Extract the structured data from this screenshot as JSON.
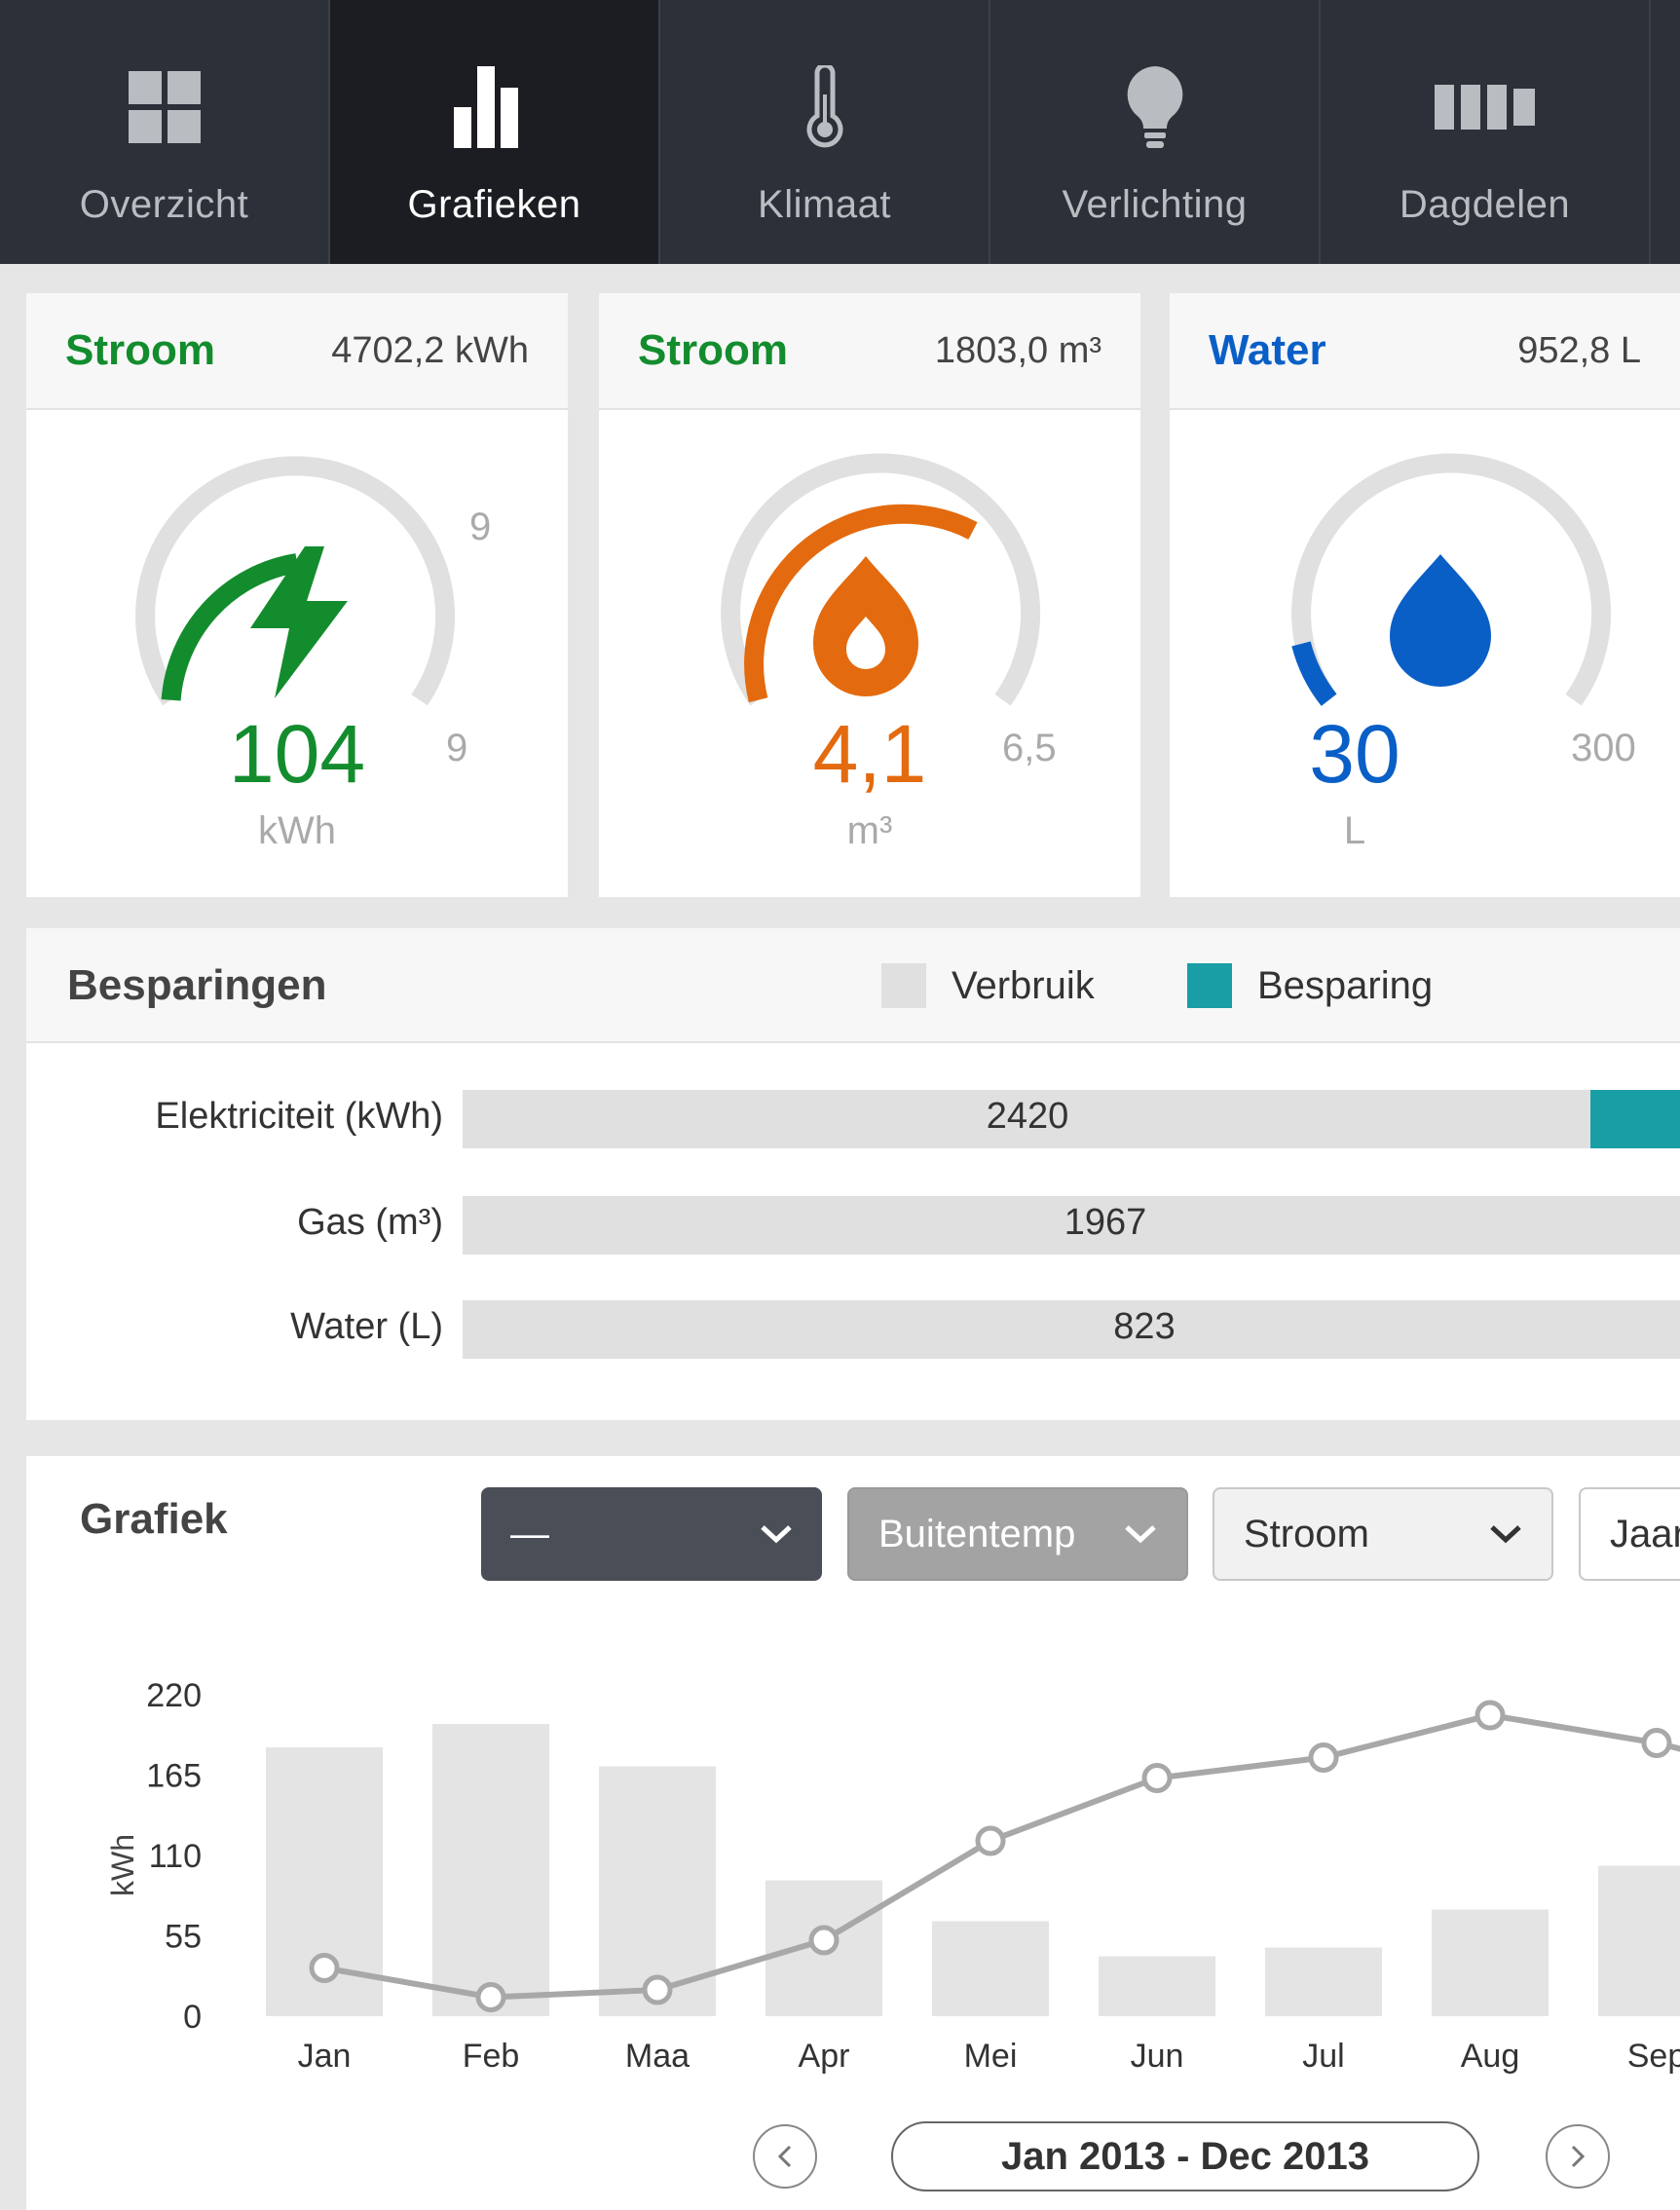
{
  "nav": {
    "items": [
      {
        "label": "Overzicht",
        "icon": "grid-icon"
      },
      {
        "label": "Grafieken",
        "icon": "bar-chart-icon"
      },
      {
        "label": "Klimaat",
        "icon": "thermometer-icon"
      },
      {
        "label": "Verlichting",
        "icon": "lightbulb-icon"
      },
      {
        "label": "Dagdelen",
        "icon": "day-segments-icon"
      }
    ],
    "active": 1
  },
  "cards": [
    {
      "title": "Stroom",
      "total": "4702,2 kWh",
      "value": "104",
      "unit": "kWh",
      "max_top": "9",
      "max_side": "9",
      "color": "#138c2e",
      "fill": 0.45
    },
    {
      "title": "Stroom",
      "total": "1803,0 m³",
      "value": "4,1",
      "unit": "m³",
      "max_side": "6,5",
      "color": "#e36a0f",
      "fill": 0.63
    },
    {
      "title": "Water",
      "total": "952,8 L",
      "value": "30",
      "unit": "L",
      "max_side": "300",
      "color": "#0a5fc7",
      "fill": 0.1
    }
  ],
  "savings": {
    "title": "Besparingen",
    "legend": {
      "usage": "Verbruik",
      "saving": "Besparing"
    },
    "usage_color": "#e0e0e0",
    "saving_color": "#1a9ea5",
    "rows": [
      {
        "label": "Elektriciteit (kWh)",
        "value": "2420"
      },
      {
        "label": "Gas (m³)",
        "value": "1967"
      },
      {
        "label": "Water (L)",
        "value": "823"
      }
    ]
  },
  "graph": {
    "title": "Grafiek",
    "dropdowns": [
      {
        "label": "—"
      },
      {
        "label": "Buitentemp"
      },
      {
        "label": "Stroom"
      },
      {
        "label": "Jaar"
      }
    ],
    "range": "Jan 2013 - Dec 2013",
    "chart_data": {
      "type": "bar",
      "categories": [
        "Jan",
        "Feb",
        "Maa",
        "Apr",
        "Mei",
        "Jun",
        "Jul",
        "Aug",
        "Sep"
      ],
      "ylabel": "kWh",
      "yticks": [
        "220",
        "165",
        "110",
        "55",
        "0"
      ],
      "ylim": [
        0,
        220
      ],
      "series": [
        {
          "type": "bar",
          "values": [
            184,
            200,
            171,
            93,
            65,
            41,
            47,
            73,
            103
          ]
        },
        {
          "type": "line",
          "values": [
            33,
            13,
            18,
            52,
            120,
            163,
            177,
            206,
            187
          ]
        }
      ]
    }
  }
}
